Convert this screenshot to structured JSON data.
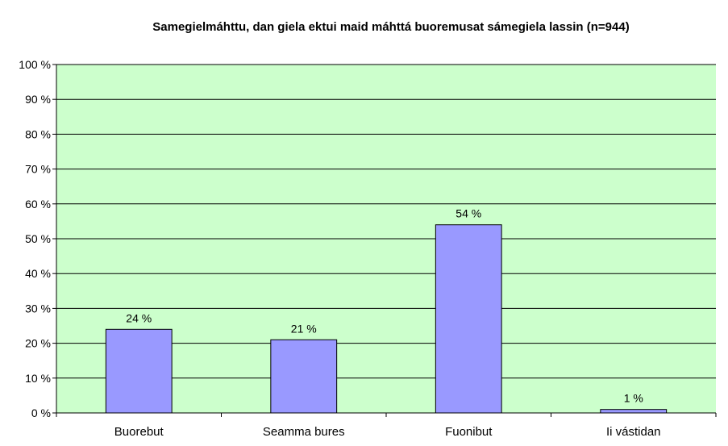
{
  "chart_data": {
    "type": "bar",
    "title": "Samegielmáhttu, dan giela ektui maid máhttá buoremusat sámegiela lassin (n=944)",
    "categories": [
      "Buorebut",
      "Seamma bures",
      "Fuonibut",
      "Ii vástidan"
    ],
    "values": [
      24,
      21,
      54,
      1
    ],
    "data_labels": [
      "24 %",
      "21 %",
      "54 %",
      "1 %"
    ],
    "ylim": [
      0,
      100
    ],
    "yticks": [
      0,
      10,
      20,
      30,
      40,
      50,
      60,
      70,
      80,
      90,
      100
    ],
    "ytick_labels": [
      "0 %",
      "10 %",
      "20 %",
      "30 %",
      "40 %",
      "50 %",
      "60 %",
      "70 %",
      "80 %",
      "90 %",
      "100 %"
    ],
    "grid": true,
    "legend": "none",
    "colors": {
      "plot_background": "#ccffcc",
      "bar_fill": "#9999ff",
      "bar_stroke": "#000000",
      "gridline": "#000000"
    }
  }
}
